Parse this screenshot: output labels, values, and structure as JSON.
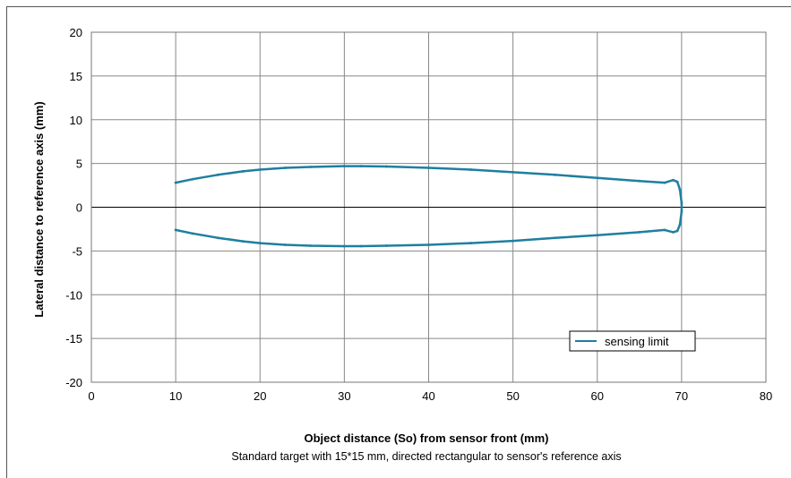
{
  "chart_data": {
    "type": "line",
    "xlabel": "Object distance (So) from sensor front (mm)",
    "ylabel": "Lateral distance to reference axis (mm)",
    "subtitle": "Standard target with 15*15 mm, directed rectangular to sensor's reference axis",
    "xlim": [
      0,
      80
    ],
    "ylim": [
      -20,
      20
    ],
    "x_ticks": [
      0,
      10,
      20,
      30,
      40,
      50,
      60,
      70,
      80
    ],
    "y_ticks": [
      20,
      15,
      10,
      5,
      0,
      -5,
      -10,
      -15,
      -20
    ],
    "x_tick_labels": [
      "0",
      "10",
      "20",
      "30",
      "40",
      "50",
      "60",
      "70",
      "80"
    ],
    "y_tick_labels": [
      "20",
      "15",
      "10",
      "5",
      "0",
      "-5",
      "-10",
      "-15",
      "-20"
    ],
    "grid": true,
    "legend_position": "bottom-right",
    "series": [
      {
        "name": "sensing limit",
        "color": "#1e7fa0",
        "x": [
          10,
          12,
          15,
          18,
          20,
          23,
          26,
          30,
          32,
          35,
          40,
          45,
          50,
          55,
          60,
          65,
          68,
          69,
          69.5,
          69.8,
          70,
          70,
          69.8,
          69.5,
          69,
          68,
          65,
          60,
          55,
          50,
          45,
          40,
          35,
          32,
          30,
          26,
          23,
          20,
          18,
          15,
          12,
          10
        ],
        "y": [
          2.8,
          3.2,
          3.7,
          4.1,
          4.3,
          4.5,
          4.6,
          4.7,
          4.7,
          4.65,
          4.5,
          4.3,
          4.0,
          3.7,
          3.35,
          3.0,
          2.8,
          3.1,
          2.9,
          2.0,
          0.5,
          -0.5,
          -2.0,
          -2.7,
          -2.85,
          -2.6,
          -2.85,
          -3.2,
          -3.5,
          -3.85,
          -4.1,
          -4.3,
          -4.4,
          -4.45,
          -4.45,
          -4.4,
          -4.3,
          -4.1,
          -3.9,
          -3.5,
          -3.0,
          -2.6
        ]
      }
    ]
  }
}
